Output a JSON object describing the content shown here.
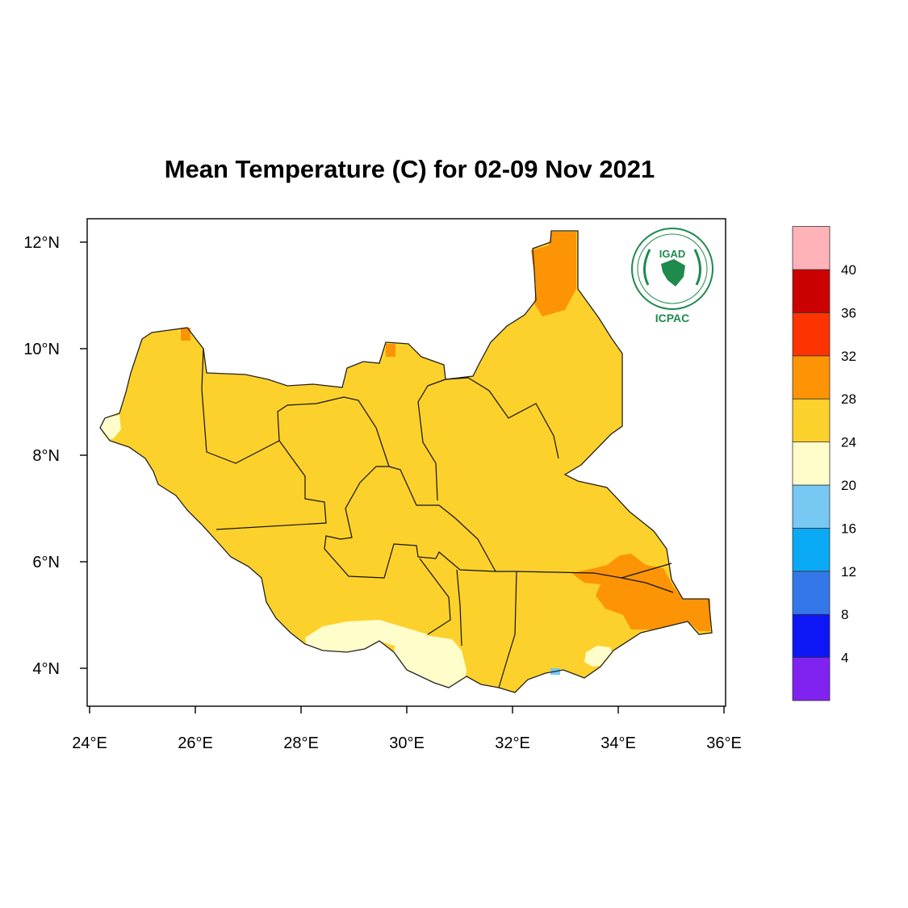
{
  "title": "Mean Temperature (C) for 02-09 Nov 2021",
  "map": {
    "region": "South Sudan",
    "lon_range": [
      24,
      36
    ],
    "lat_range": [
      3.4,
      12.4
    ],
    "x_ticks": [
      {
        "lon": 24,
        "label": "24°E"
      },
      {
        "lon": 26,
        "label": "26°E"
      },
      {
        "lon": 28,
        "label": "28°E"
      },
      {
        "lon": 30,
        "label": "30°E"
      },
      {
        "lon": 32,
        "label": "32°E"
      },
      {
        "lon": 34,
        "label": "34°E"
      },
      {
        "lon": 36,
        "label": "36°E"
      }
    ],
    "y_ticks": [
      {
        "lat": 12,
        "label": "12°N"
      },
      {
        "lat": 10,
        "label": "10°N"
      },
      {
        "lat": 8,
        "label": "8°N"
      },
      {
        "lat": 6,
        "label": "6°N"
      },
      {
        "lat": 4,
        "label": "4°N"
      }
    ],
    "dominant_class": "24-28"
  },
  "legend": {
    "bins": [
      {
        "color": "#8022f0"
      },
      {
        "color": "#0d16f5"
      },
      {
        "color": "#3377e8"
      },
      {
        "color": "#0aa9f5"
      },
      {
        "color": "#77c8f2"
      },
      {
        "color": "#fffdca"
      },
      {
        "color": "#fdd12b"
      },
      {
        "color": "#fd9405"
      },
      {
        "color": "#fe3302"
      },
      {
        "color": "#cb0101"
      },
      {
        "color": "#ffb3b8"
      }
    ],
    "labels": [
      "4",
      "8",
      "12",
      "16",
      "20",
      "24",
      "28",
      "32",
      "36",
      "40"
    ]
  },
  "logo": {
    "name": "IGAD ICPAC logo",
    "text_top": "IGAD",
    "text_bottom": "ICPAC"
  }
}
